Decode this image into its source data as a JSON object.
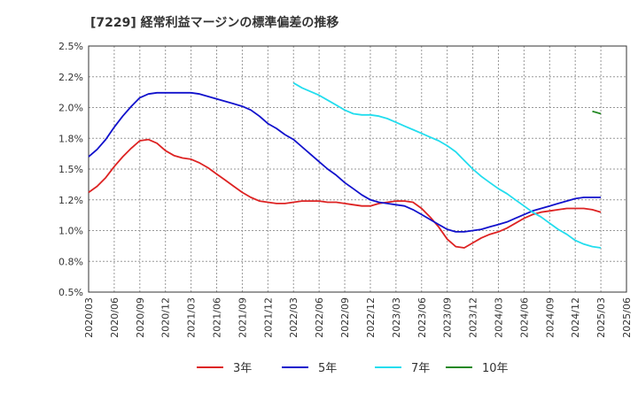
{
  "chart_data": {
    "type": "line",
    "title": "[7229]  経常利益マージンの標準偏差の推移",
    "ylim": [
      0.005,
      0.025
    ],
    "y_ticks": [
      0.005,
      0.0075,
      0.01,
      0.0125,
      0.015,
      0.0175,
      0.02,
      0.0225,
      0.025
    ],
    "y_tick_labels": [
      "0.5%",
      "0.8%",
      "1.0%",
      "1.2%",
      "1.5%",
      "1.8%",
      "2.0%",
      "2.2%",
      "2.5%"
    ],
    "x_tick_labels": [
      "2020/03",
      "2020/06",
      "2020/09",
      "2020/12",
      "2021/03",
      "2021/06",
      "2021/09",
      "2021/12",
      "2022/03",
      "2022/06",
      "2022/09",
      "2022/12",
      "2023/03",
      "2023/06",
      "2023/09",
      "2023/12",
      "2024/03",
      "2024/06",
      "2024/09",
      "2024/12",
      "2025/03",
      "2025/06"
    ],
    "grid": true,
    "legend_position": "bottom",
    "series": [
      {
        "name": "3年",
        "color": "#dd2222",
        "x": [
          "2020/03",
          "2020/04",
          "2020/05",
          "2020/06",
          "2020/07",
          "2020/08",
          "2020/09",
          "2020/10",
          "2020/11",
          "2020/12",
          "2021/01",
          "2021/02",
          "2021/03",
          "2021/04",
          "2021/05",
          "2021/06",
          "2021/07",
          "2021/08",
          "2021/09",
          "2021/10",
          "2021/11",
          "2021/12",
          "2022/01",
          "2022/02",
          "2022/03",
          "2022/04",
          "2022/05",
          "2022/06",
          "2022/07",
          "2022/08",
          "2022/09",
          "2022/10",
          "2022/11",
          "2022/12",
          "2023/01",
          "2023/02",
          "2023/03",
          "2023/04",
          "2023/05",
          "2023/06",
          "2023/07",
          "2023/08",
          "2023/09",
          "2023/10",
          "2023/11",
          "2023/12",
          "2024/01",
          "2024/02",
          "2024/03",
          "2024/04",
          "2024/05",
          "2024/06",
          "2024/07",
          "2024/08",
          "2024/09",
          "2024/10",
          "2024/11",
          "2024/12",
          "2025/01",
          "2025/02",
          "2025/03"
        ],
        "values": [
          0.0131,
          0.0136,
          0.0143,
          0.0152,
          0.016,
          0.0167,
          0.0173,
          0.0174,
          0.0171,
          0.0165,
          0.0161,
          0.0159,
          0.0158,
          0.0155,
          0.0151,
          0.0146,
          0.0141,
          0.0136,
          0.0131,
          0.0127,
          0.0124,
          0.0123,
          0.0122,
          0.0122,
          0.0123,
          0.0124,
          0.0124,
          0.0124,
          0.0123,
          0.0123,
          0.0122,
          0.0121,
          0.012,
          0.012,
          0.0122,
          0.0123,
          0.0124,
          0.0124,
          0.0123,
          0.0118,
          0.0111,
          0.0103,
          0.0093,
          0.0087,
          0.0086,
          0.009,
          0.0094,
          0.0097,
          0.0099,
          0.0102,
          0.0106,
          0.011,
          0.0113,
          0.0115,
          0.0116,
          0.0117,
          0.0118,
          0.0118,
          0.0118,
          0.0117,
          0.0115
        ]
      },
      {
        "name": "5年",
        "color": "#1111cc",
        "x": [
          "2020/03",
          "2020/04",
          "2020/05",
          "2020/06",
          "2020/07",
          "2020/08",
          "2020/09",
          "2020/10",
          "2020/11",
          "2020/12",
          "2021/01",
          "2021/02",
          "2021/03",
          "2021/04",
          "2021/05",
          "2021/06",
          "2021/07",
          "2021/08",
          "2021/09",
          "2021/10",
          "2021/11",
          "2021/12",
          "2022/01",
          "2022/02",
          "2022/03",
          "2022/04",
          "2022/05",
          "2022/06",
          "2022/07",
          "2022/08",
          "2022/09",
          "2022/10",
          "2022/11",
          "2022/12",
          "2023/01",
          "2023/02",
          "2023/03",
          "2023/04",
          "2023/05",
          "2023/06",
          "2023/07",
          "2023/08",
          "2023/09",
          "2023/10",
          "2023/11",
          "2023/12",
          "2024/01",
          "2024/02",
          "2024/03",
          "2024/04",
          "2024/05",
          "2024/06",
          "2024/07",
          "2024/08",
          "2024/09",
          "2024/10",
          "2024/11",
          "2024/12",
          "2025/01",
          "2025/02",
          "2025/03"
        ],
        "values": [
          0.016,
          0.0166,
          0.0174,
          0.0184,
          0.0193,
          0.0201,
          0.0208,
          0.0211,
          0.0212,
          0.0212,
          0.0212,
          0.0212,
          0.0212,
          0.0211,
          0.0209,
          0.0207,
          0.0205,
          0.0203,
          0.0201,
          0.0198,
          0.0193,
          0.0187,
          0.0183,
          0.0178,
          0.0174,
          0.0168,
          0.0162,
          0.0156,
          0.015,
          0.0145,
          0.0139,
          0.0134,
          0.0129,
          0.0125,
          0.0123,
          0.0122,
          0.0121,
          0.012,
          0.0117,
          0.0113,
          0.0109,
          0.0105,
          0.0101,
          0.0099,
          0.0099,
          0.01,
          0.0101,
          0.0103,
          0.0105,
          0.0107,
          0.011,
          0.0113,
          0.0116,
          0.0118,
          0.012,
          0.0122,
          0.0124,
          0.0126,
          0.0127,
          0.0127,
          0.0127
        ]
      },
      {
        "name": "7年",
        "color": "#22ddee",
        "x": [
          "2022/03",
          "2022/04",
          "2022/05",
          "2022/06",
          "2022/07",
          "2022/08",
          "2022/09",
          "2022/10",
          "2022/11",
          "2022/12",
          "2023/01",
          "2023/02",
          "2023/03",
          "2023/04",
          "2023/05",
          "2023/06",
          "2023/07",
          "2023/08",
          "2023/09",
          "2023/10",
          "2023/11",
          "2023/12",
          "2024/01",
          "2024/02",
          "2024/03",
          "2024/04",
          "2024/05",
          "2024/06",
          "2024/07",
          "2024/08",
          "2024/09",
          "2024/10",
          "2024/11",
          "2024/12",
          "2025/01",
          "2025/02",
          "2025/03"
        ],
        "values": [
          0.022,
          0.0216,
          0.0213,
          0.021,
          0.0206,
          0.0202,
          0.0198,
          0.0195,
          0.0194,
          0.0194,
          0.0193,
          0.0191,
          0.0188,
          0.0185,
          0.0182,
          0.0179,
          0.0176,
          0.0173,
          0.0169,
          0.0164,
          0.0157,
          0.015,
          0.0144,
          0.0139,
          0.0134,
          0.013,
          0.0125,
          0.012,
          0.0115,
          0.0111,
          0.0106,
          0.0101,
          0.0097,
          0.0092,
          0.0089,
          0.0087,
          0.0086
        ]
      },
      {
        "name": "10年",
        "color": "#228822",
        "x": [
          "2025/02",
          "2025/03"
        ],
        "values": [
          0.0197,
          0.0195
        ]
      }
    ]
  }
}
